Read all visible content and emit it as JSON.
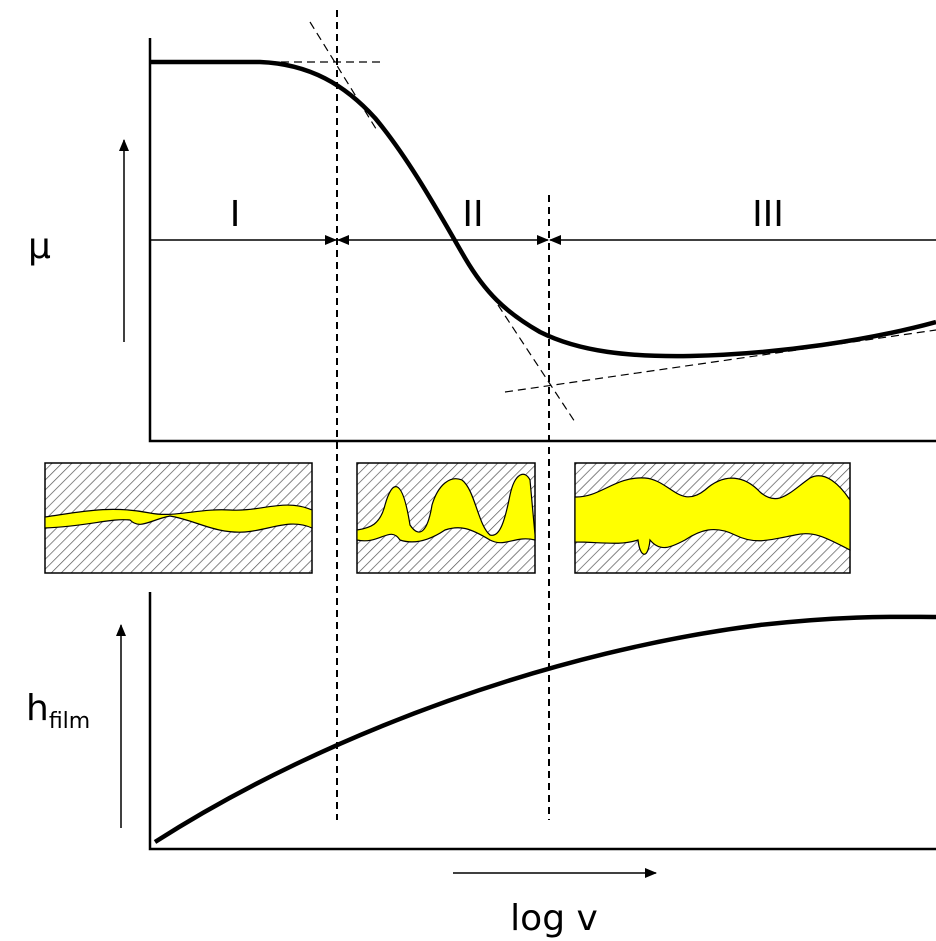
{
  "labels": {
    "y_top": "μ",
    "y_bottom": {
      "main": "h",
      "sub": "film"
    },
    "x": "log v"
  },
  "regimes": [
    "I",
    "II",
    "III"
  ]
}
